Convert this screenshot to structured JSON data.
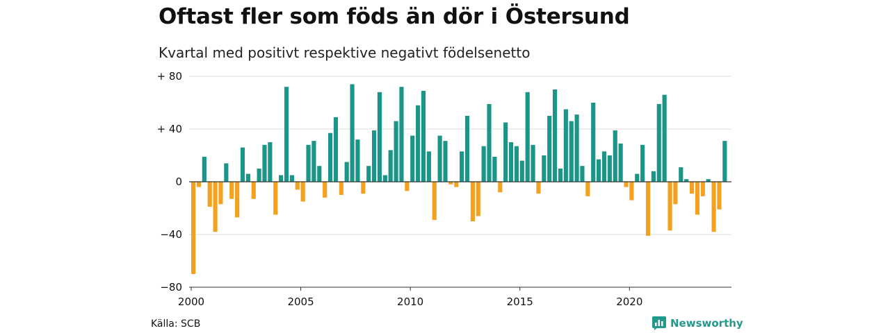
{
  "title": "Oftast fler som föds än dör i Östersund",
  "subtitle": "Kvartal med positivt respektive negativt födelsenetto",
  "source": "Källa: SCB",
  "brand": {
    "name": "Newsworthy",
    "icon": "newsworthy-logo-icon"
  },
  "colors": {
    "positive": "#1a9587",
    "negative": "#f4a11f",
    "grid": "#dddddd",
    "axis": "#333333",
    "brand": "#23998b"
  },
  "chart_data": {
    "type": "bar",
    "title": "Oftast fler som föds än dör i Östersund",
    "subtitle": "Kvartal med positivt respektive negativt födelsenetto",
    "xlabel": "",
    "ylabel": "",
    "ylim": [
      -80,
      80
    ],
    "yticks": [
      80,
      40,
      0,
      -40,
      -80
    ],
    "ytick_labels": [
      "+ 80",
      "+ 40",
      "0",
      "−40",
      "−80"
    ],
    "xlim": [
      2000,
      2024.75
    ],
    "xticks": [
      2000,
      2005,
      2010,
      2015,
      2020
    ],
    "xtick_labels": [
      "2000",
      "2005",
      "2010",
      "2015",
      "2020"
    ],
    "grid": true,
    "legend": "none",
    "x_unit": "quarter start year (2000 Q1 … 2024 Q3)",
    "series": [
      {
        "values": [
          -70,
          -4,
          19,
          -19,
          -38,
          -17,
          14,
          -13,
          -27,
          26,
          6,
          -13,
          10,
          28,
          30,
          -25,
          5,
          72,
          5,
          -6,
          -15,
          28,
          31,
          12,
          -12,
          37,
          49,
          -10,
          15,
          74,
          32,
          -9,
          12,
          39,
          68,
          5,
          24,
          46,
          72,
          -7,
          35,
          58,
          69,
          23,
          -29,
          35,
          31,
          -2,
          -4,
          23,
          50,
          -30,
          -26,
          27,
          59,
          19,
          -8,
          45,
          30,
          27,
          16,
          68,
          28,
          -9,
          20,
          50,
          70,
          10,
          55,
          46,
          51,
          12,
          -11,
          60,
          17,
          23,
          20,
          39,
          29,
          -4,
          -14,
          6,
          28,
          -41,
          8,
          59,
          66,
          -37,
          -17,
          11,
          2,
          -9,
          -25,
          -11,
          2,
          -38,
          -21,
          31
        ]
      }
    ]
  }
}
